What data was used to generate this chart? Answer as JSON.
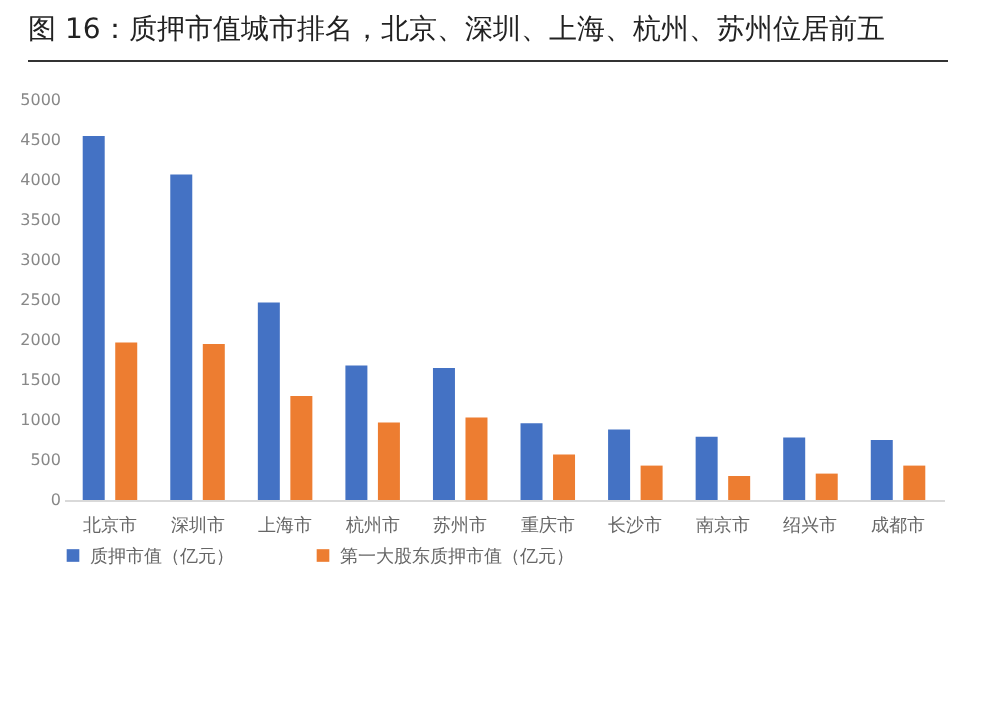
{
  "chart_data": {
    "type": "bar",
    "title": "图 16：质押市值城市排名，北京、深圳、上海、杭州、苏州位居前五",
    "categories": [
      "北京市",
      "深圳市",
      "上海市",
      "杭州市",
      "苏州市",
      "重庆市",
      "长沙市",
      "南京市",
      "绍兴市",
      "成都市"
    ],
    "series": [
      {
        "name": "质押市值（亿元）",
        "color": "#4472c4",
        "values": [
          4550,
          4070,
          2470,
          1680,
          1650,
          960,
          880,
          790,
          780,
          750
        ]
      },
      {
        "name": "第一大股东质押市值（亿元）",
        "color": "#ed7d31",
        "values": [
          1970,
          1950,
          1300,
          970,
          1030,
          570,
          430,
          300,
          330,
          430
        ]
      }
    ],
    "ylim": [
      0,
      5000
    ],
    "yticks": [
      0,
      500,
      1000,
      1500,
      2000,
      2500,
      3000,
      3500,
      4000,
      4500,
      5000
    ],
    "grid": false,
    "legend": "bottom"
  }
}
